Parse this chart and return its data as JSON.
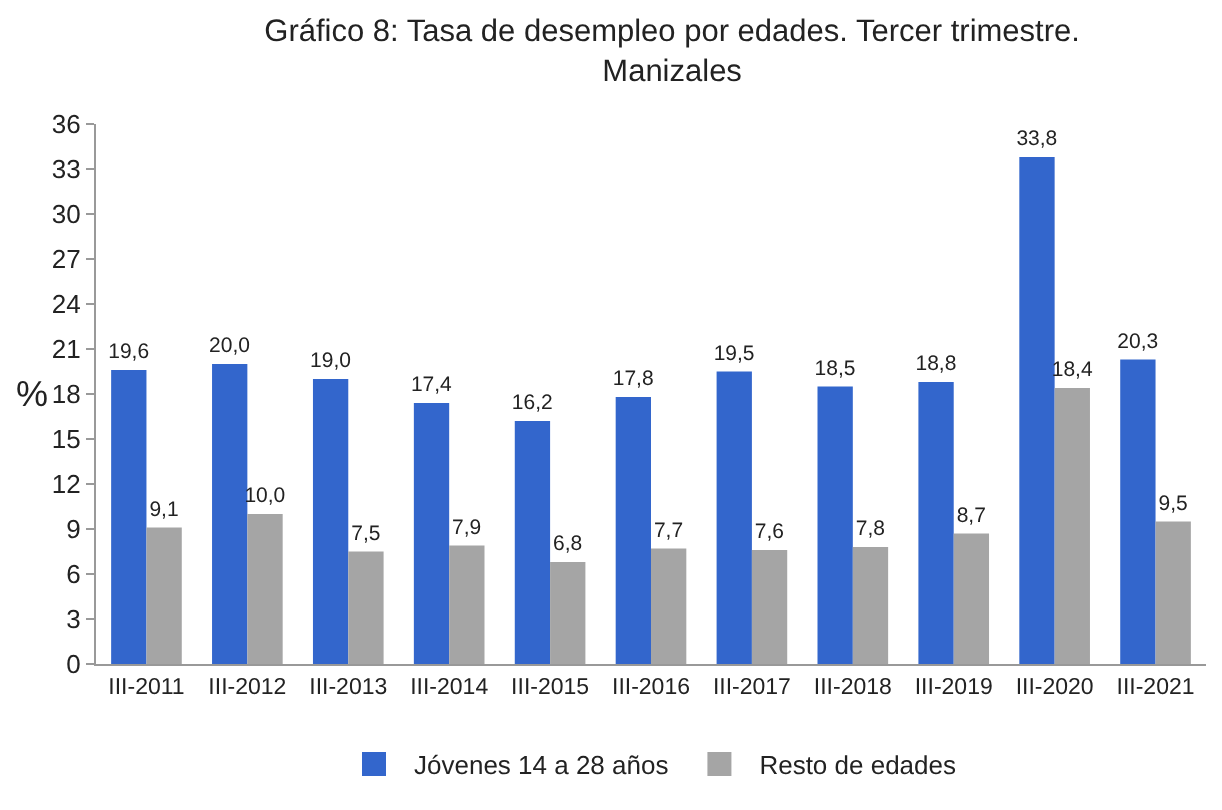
{
  "chart_data": {
    "type": "bar",
    "title": "Gráfico 8: Tasa de desempleo por edades. Tercer trimestre.\nManizales",
    "ylabel": "%",
    "categories": [
      "III-2011",
      "III-2012",
      "III-2013",
      "III-2014",
      "III-2015",
      "III-2016",
      "III-2017",
      "III-2018",
      "III-2019",
      "III-2020",
      "III-2021"
    ],
    "series": [
      {
        "name": "Jóvenes 14 a 28 años",
        "color": "#3366cc",
        "values": [
          19.6,
          20.0,
          19.0,
          17.4,
          16.2,
          17.8,
          19.5,
          18.5,
          18.8,
          33.8,
          20.3
        ],
        "value_labels": [
          "19,6",
          "20,0",
          "19,0",
          "17,4",
          "16,2",
          "17,8",
          "19,5",
          "18,5",
          "18,8",
          "33,8",
          "20,3"
        ]
      },
      {
        "name": "Resto de edades",
        "color": "#a5a5a5",
        "values": [
          9.1,
          10.0,
          7.5,
          7.9,
          6.8,
          7.7,
          7.6,
          7.8,
          8.7,
          18.4,
          9.5
        ],
        "value_labels": [
          "9,1",
          "10,0",
          "7,5",
          "7,9",
          "6,8",
          "7,7",
          "7,6",
          "7,8",
          "8,7",
          "18,4",
          "9,5"
        ]
      }
    ],
    "ylim": [
      0,
      36
    ],
    "yticks": [
      0,
      3,
      6,
      9,
      12,
      15,
      18,
      21,
      24,
      27,
      30,
      33,
      36
    ],
    "grid": false,
    "legend": "bottom"
  }
}
